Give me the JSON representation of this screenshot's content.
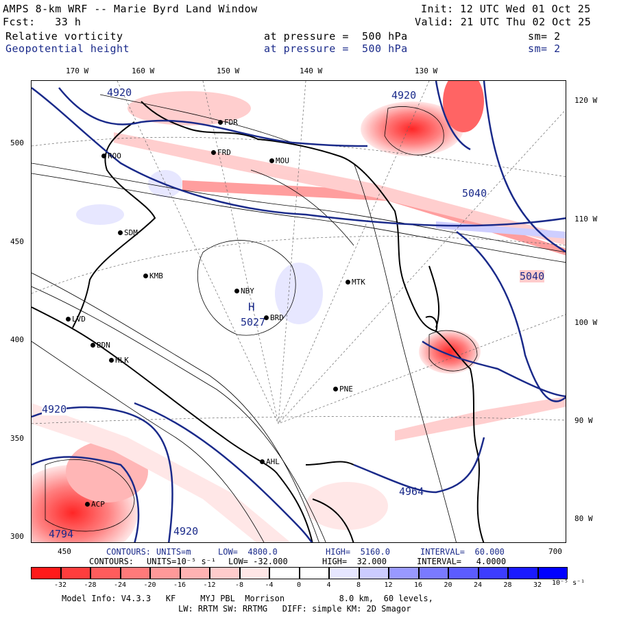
{
  "header": {
    "title": "AMPS 8-km WRF -- Marie Byrd Land Window",
    "init": "Init: 12 UTC Wed 01 Oct 25",
    "fcst": "Fcst:   33 h",
    "valid": "Valid: 21 UTC Thu 02 Oct 25",
    "field1_name": "Relative vorticity",
    "field1_level": "at pressure =  500 hPa",
    "field1_sm": "sm= 2",
    "field2_name": "Geopotential height",
    "field2_level": "at pressure =  500 hPa",
    "field2_sm": "sm= 2"
  },
  "top_lon_labels": [
    "170 W",
    "160 W",
    "150 W",
    "140 W",
    "130 W"
  ],
  "right_lon_labels": [
    "120 W",
    "110 W",
    "100 W",
    "90 W",
    "80 W"
  ],
  "left_y_labels": [
    "500",
    "450",
    "400",
    "350",
    "300"
  ],
  "bottom_x_labels": [
    "450",
    "700"
  ],
  "stations": [
    "FDR",
    "FRD",
    "ROO",
    "MOU",
    "SDM",
    "KMB",
    "NBY",
    "BRD",
    "MTK",
    "LVD",
    "BDN",
    "HLK",
    "PNE",
    "AHL",
    "ACP"
  ],
  "height_labels": [
    "4920",
    "4920",
    "5040",
    "5040",
    "5027",
    "4920",
    "4964",
    "4920",
    "4794"
  ],
  "high_marker": "H",
  "contours_line1": {
    "label": "CONTOURS:",
    "units": "UNITS=m",
    "low": "LOW=  4800.0",
    "high": "HIGH=  5160.0",
    "interval": "INTERVAL=  60.000"
  },
  "contours_line2": {
    "label": "CONTOURS:",
    "units": "UNITS=10⁻⁵ s⁻¹",
    "low": "LOW= -32.000",
    "high": "HIGH=  32.000",
    "interval": "INTERVAL=   4.0000"
  },
  "colorbar": {
    "ticks": [
      "-32",
      "-28",
      "-24",
      "-20",
      "-16",
      "-12",
      "-8",
      "-4",
      "0",
      "4",
      "8",
      "12",
      "16",
      "20",
      "24",
      "28",
      "32"
    ],
    "units": "10⁻⁵ s⁻¹",
    "colors": [
      "#ff1a1a",
      "#ff3d3d",
      "#ff5c5c",
      "#ff7a7a",
      "#ff9999",
      "#ffb3b3",
      "#ffcccc",
      "#ffe6e6",
      "#ffffff",
      "#ffffff",
      "#e6e6ff",
      "#ccccff",
      "#9999ff",
      "#7a7aff",
      "#5c5cff",
      "#3d3dff",
      "#1a1aff",
      "#0000ff"
    ]
  },
  "model_info": {
    "line1": "Model Info: V4.3.3   KF     MYJ PBL  Morrison           8.0 km,  60 levels,",
    "line2": "LW: RRTM SW: RRTMG   DIFF: simple KM: 2D Smagor"
  }
}
